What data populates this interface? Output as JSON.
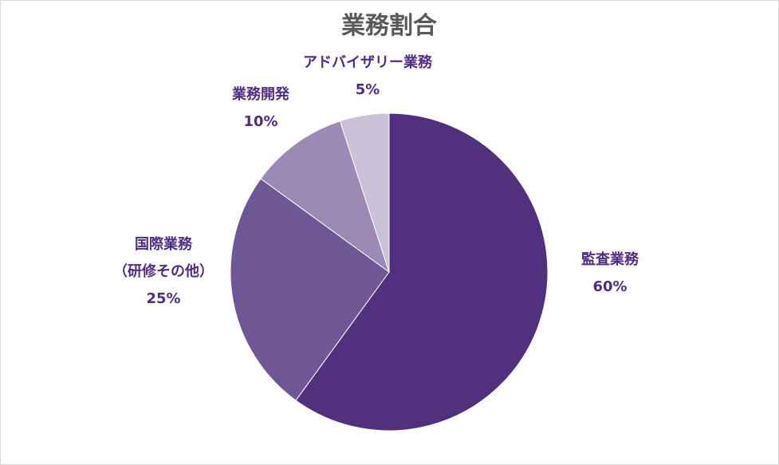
{
  "chart_data": {
    "type": "pie",
    "title": "業務割合",
    "slices": [
      {
        "label_lines": [
          "監査業務"
        ],
        "value": 60,
        "value_label": "60%",
        "color": "#51307d"
      },
      {
        "label_lines": [
          "国際業務",
          "（研修その他）"
        ],
        "value": 25,
        "value_label": "25%",
        "color": "#6f5694"
      },
      {
        "label_lines": [
          "業務開発"
        ],
        "value": 10,
        "value_label": "10%",
        "color": "#9c89b5"
      },
      {
        "label_lines": [
          "アドバイザリー業務"
        ],
        "value": 5,
        "value_label": "5%",
        "color": "#cac0d8"
      }
    ],
    "start_angle_deg": 0,
    "direction": "clockwise",
    "label_color": "#4f2d7f",
    "legend": "none"
  }
}
